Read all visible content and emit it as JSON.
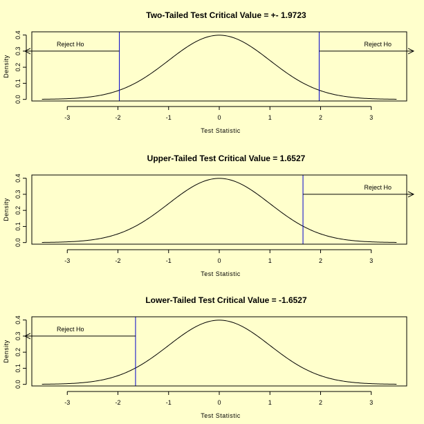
{
  "chart_data": [
    {
      "type": "line",
      "title": "Two-Tailed Test Critical Value = +-  1.9723",
      "xlabel": "Test Statistic",
      "ylabel": "Density",
      "xlim": [
        -3.7,
        3.7
      ],
      "ylim": [
        -0.01,
        0.42
      ],
      "x_ticks": [
        "-3",
        "-2",
        "-1",
        "0",
        "1",
        "2",
        "3"
      ],
      "y_ticks": [
        "0.0",
        "0.1",
        "0.2",
        "0.3",
        "0.4"
      ],
      "curve": {
        "distribution": "standard normal density",
        "x_range": [
          -3.5,
          3.5
        ]
      },
      "critical_values": [
        -1.9723,
        1.9723
      ],
      "annotations": [
        {
          "text": "Reject Ho",
          "direction": "left",
          "arrow_y": 0.3
        },
        {
          "text": "Reject Ho",
          "direction": "right",
          "arrow_y": 0.3
        }
      ],
      "colors": {
        "curve": "#000000",
        "critical_line": "#0000cc"
      }
    },
    {
      "type": "line",
      "title": "Upper-Tailed Test Critical Value =  1.6527",
      "xlabel": "Test Statistic",
      "ylabel": "Density",
      "xlim": [
        -3.7,
        3.7
      ],
      "ylim": [
        -0.01,
        0.42
      ],
      "x_ticks": [
        "-3",
        "-2",
        "-1",
        "0",
        "1",
        "2",
        "3"
      ],
      "y_ticks": [
        "0.0",
        "0.1",
        "0.2",
        "0.3",
        "0.4"
      ],
      "curve": {
        "distribution": "standard normal density",
        "x_range": [
          -3.5,
          3.5
        ]
      },
      "critical_values": [
        1.6527
      ],
      "annotations": [
        {
          "text": "Reject Ho",
          "direction": "right",
          "arrow_y": 0.3
        }
      ],
      "colors": {
        "curve": "#000000",
        "critical_line": "#0000cc"
      }
    },
    {
      "type": "line",
      "title": "Lower-Tailed Test Critical Value =  -1.6527",
      "xlabel": "Test Statistic",
      "ylabel": "Density",
      "xlim": [
        -3.7,
        3.7
      ],
      "ylim": [
        -0.01,
        0.42
      ],
      "x_ticks": [
        "-3",
        "-2",
        "-1",
        "0",
        "1",
        "2",
        "3"
      ],
      "y_ticks": [
        "0.0",
        "0.1",
        "0.2",
        "0.3",
        "0.4"
      ],
      "curve": {
        "distribution": "standard normal density",
        "x_range": [
          -3.5,
          3.5
        ]
      },
      "critical_values": [
        -1.6527
      ],
      "annotations": [
        {
          "text": "Reject Ho",
          "direction": "left",
          "arrow_y": 0.3
        }
      ],
      "colors": {
        "curve": "#000000",
        "critical_line": "#0000cc"
      }
    }
  ]
}
